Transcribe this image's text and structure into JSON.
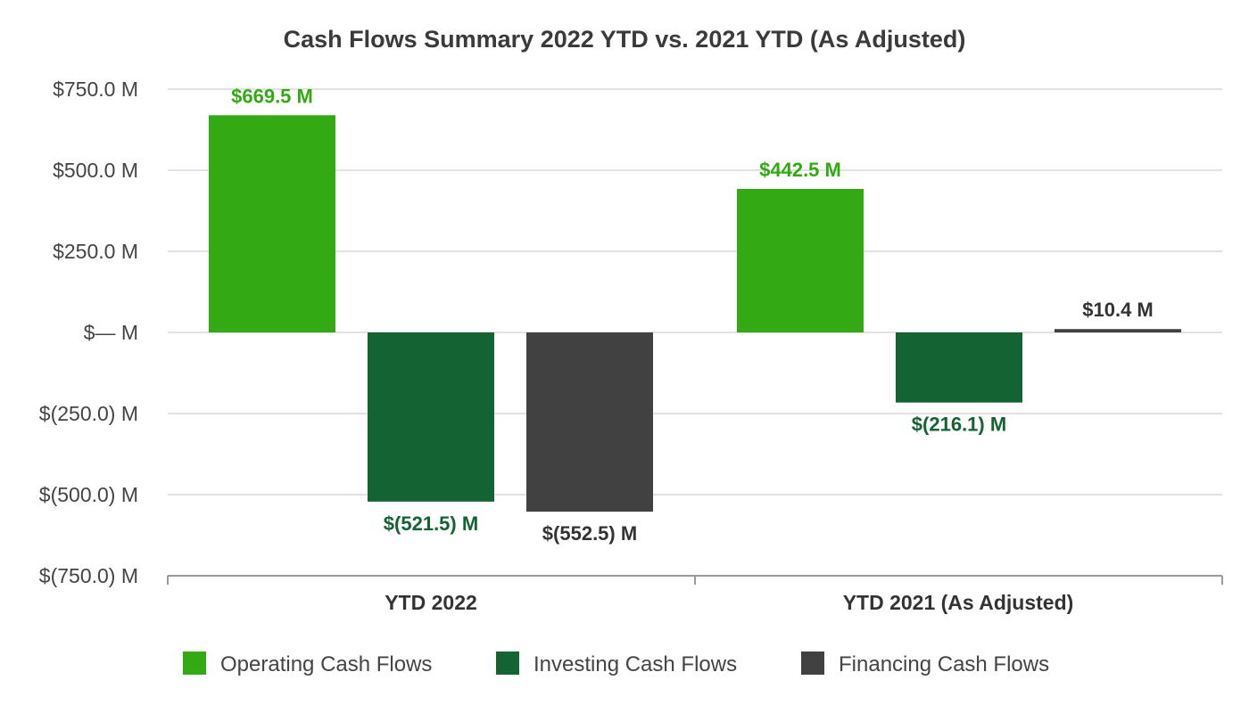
{
  "chart_data": {
    "type": "bar",
    "title": "Cash Flows Summary 2022 YTD vs. 2021 YTD (As Adjusted)",
    "xlabel": "",
    "ylabel": "",
    "categories": [
      "YTD 2022",
      "YTD 2021 (As Adjusted)"
    ],
    "series": [
      {
        "name": "Operating Cash Flows",
        "color": "#33a913",
        "values": [
          669.5,
          442.5
        ],
        "labels": [
          "$669.5 M",
          "$442.5 M"
        ]
      },
      {
        "name": "Investing Cash Flows",
        "color": "#136432",
        "values": [
          -521.5,
          -216.1
        ],
        "labels": [
          "$(521.5) M",
          "$(216.1) M"
        ]
      },
      {
        "name": "Financing Cash Flows",
        "color": "#424142",
        "values": [
          -552.5,
          10.4
        ],
        "labels": [
          "$(552.5) M",
          "$10.4 M"
        ]
      }
    ],
    "ylim": [
      -750,
      750
    ],
    "yticks": [
      750,
      500,
      250,
      0,
      -250,
      -500,
      -750
    ],
    "ytick_labels": [
      "$750.0 M",
      "$500.0 M",
      "$250.0 M",
      "$— M",
      "$(250.0) M",
      "$(500.0) M",
      "$(750.0) M"
    ],
    "grid": true,
    "legend": "bottom",
    "label_colors": [
      "#33a913",
      "#136432",
      "#333333"
    ]
  }
}
